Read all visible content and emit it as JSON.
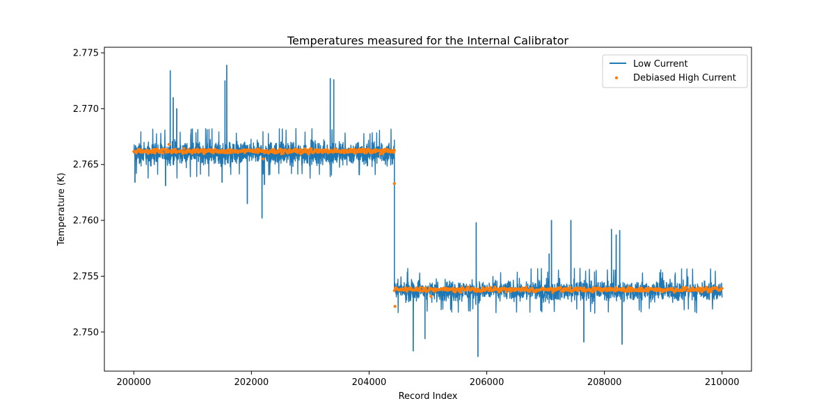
{
  "chart_data": {
    "type": "line",
    "title": "Temperatures measured for the Internal Calibrator",
    "xlabel": "Record Index",
    "ylabel": "Temperature (K)",
    "xlim": [
      199500,
      210500
    ],
    "ylim": [
      2.7465,
      2.7755
    ],
    "xticks": [
      200000,
      202000,
      204000,
      206000,
      208000,
      210000
    ],
    "xtick_labels": [
      "200000",
      "202000",
      "204000",
      "206000",
      "208000",
      "210000"
    ],
    "yticks": [
      2.75,
      2.755,
      2.76,
      2.765,
      2.77,
      2.775
    ],
    "ytick_labels": [
      "2.750",
      "2.755",
      "2.760",
      "2.765",
      "2.770",
      "2.775"
    ],
    "grid": false,
    "legend_position": "top-right",
    "series": [
      {
        "name": "Low Current",
        "style": "line",
        "color": "#1f77b4",
        "segments": [
          {
            "x_start": 200000,
            "x_end": 204430,
            "mean": 2.766,
            "band_low": 2.7645,
            "band_high": 2.7678
          },
          {
            "x_start": 204430,
            "x_end": 210000,
            "mean": 2.7537,
            "band_low": 2.7523,
            "band_high": 2.7553
          }
        ],
        "transition": {
          "x": 204430,
          "from": 2.766,
          "to": 2.7537
        },
        "spikes": [
          {
            "x": 200020,
            "y": 2.7634
          },
          {
            "x": 200540,
            "y": 2.7631
          },
          {
            "x": 200620,
            "y": 2.7734
          },
          {
            "x": 200670,
            "y": 2.771
          },
          {
            "x": 200730,
            "y": 2.77
          },
          {
            "x": 201500,
            "y": 2.7634
          },
          {
            "x": 201550,
            "y": 2.7725
          },
          {
            "x": 201580,
            "y": 2.7739
          },
          {
            "x": 201930,
            "y": 2.7615
          },
          {
            "x": 202180,
            "y": 2.7602
          },
          {
            "x": 202220,
            "y": 2.7632
          },
          {
            "x": 203340,
            "y": 2.7727
          },
          {
            "x": 203400,
            "y": 2.7726
          },
          {
            "x": 204750,
            "y": 2.7483
          },
          {
            "x": 204950,
            "y": 2.7494
          },
          {
            "x": 205820,
            "y": 2.7598
          },
          {
            "x": 205850,
            "y": 2.7478
          },
          {
            "x": 207100,
            "y": 2.76
          },
          {
            "x": 207060,
            "y": 2.757
          },
          {
            "x": 207430,
            "y": 2.76
          },
          {
            "x": 207650,
            "y": 2.7491
          },
          {
            "x": 208120,
            "y": 2.7592
          },
          {
            "x": 208200,
            "y": 2.7587
          },
          {
            "x": 208260,
            "y": 2.7591
          },
          {
            "x": 208300,
            "y": 2.7489
          },
          {
            "x": 209200,
            "y": 2.7551
          }
        ]
      },
      {
        "name": "Debiased High Current",
        "style": "scatter",
        "color": "#ff7f0e",
        "segments": [
          {
            "x_start": 200000,
            "x_end": 204430,
            "mean": 2.7662
          },
          {
            "x_start": 204430,
            "x_end": 210000,
            "mean": 2.7538
          }
        ],
        "outliers": [
          {
            "x": 200600,
            "y": 2.7668
          },
          {
            "x": 202200,
            "y": 2.7655
          },
          {
            "x": 204430,
            "y": 2.7633
          },
          {
            "x": 204440,
            "y": 2.7523
          },
          {
            "x": 205050,
            "y": 2.7532
          },
          {
            "x": 206060,
            "y": 2.754
          }
        ]
      }
    ]
  }
}
